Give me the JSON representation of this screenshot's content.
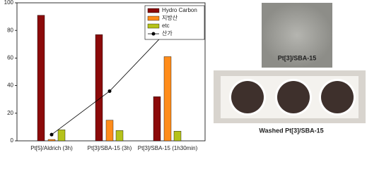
{
  "chart_data": {
    "type": "bar",
    "categories": [
      "Pt[5]/Aldrich (3h)",
      "Pt[3]/SBA-15 (3h)",
      "Pt[3]/SBA-15 (1h30min)"
    ],
    "series": [
      {
        "name": "Hydro Carbon",
        "color": "#8b0a0a",
        "values": [
          91,
          77,
          32
        ]
      },
      {
        "name": "지방산",
        "color": "#ff8c1a",
        "values": [
          1,
          15,
          61
        ]
      },
      {
        "name": "etc",
        "color": "#b5c21a",
        "values": [
          8,
          7.5,
          7
        ]
      },
      {
        "name": "산가",
        "color": "#000000",
        "type": "line",
        "values": [
          4.5,
          36,
          80
        ]
      }
    ],
    "ylim": [
      0,
      100
    ],
    "yticks": [
      0,
      20,
      40,
      60,
      80,
      100
    ],
    "legend": "upper right"
  },
  "photos": {
    "top_label": "Pt[3]/SBA-15",
    "bottom_label": "Washed Pt[3]/SBA-15"
  }
}
